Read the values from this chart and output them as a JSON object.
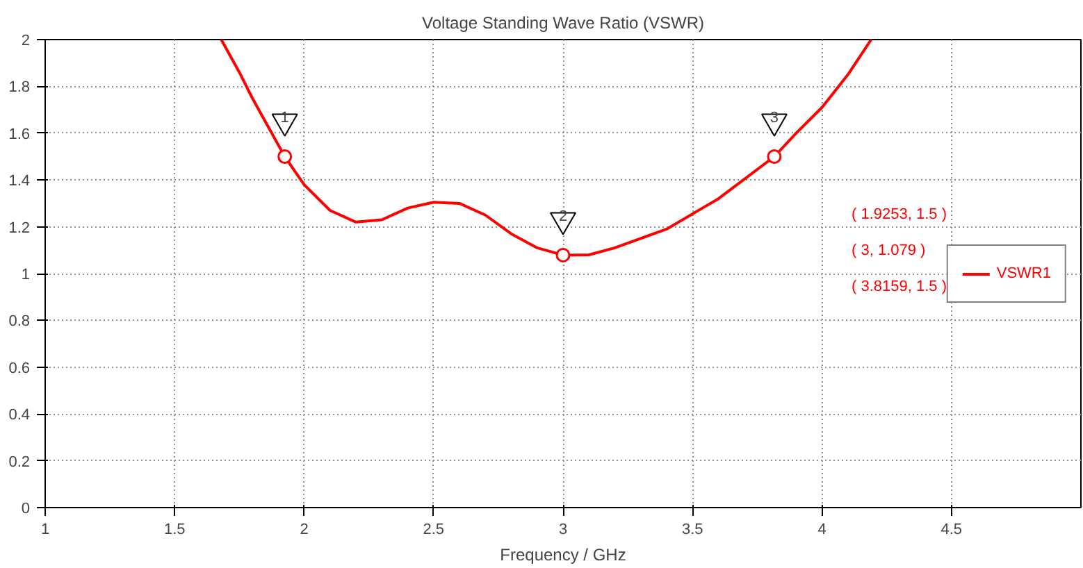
{
  "chart_data": {
    "type": "line",
    "title": "Voltage Standing Wave Ratio (VSWR)",
    "xlabel": "Frequency / GHz",
    "xlim": [
      1,
      5
    ],
    "xticks": [
      1,
      1.5,
      2,
      2.5,
      3,
      3.5,
      4,
      4.5
    ],
    "ylim": [
      0,
      2
    ],
    "yticks": [
      0,
      0.2,
      0.4,
      0.6,
      0.8,
      1,
      1.2,
      1.4,
      1.6,
      1.8,
      2
    ],
    "grid": true,
    "legend": "right",
    "series": [
      {
        "name": "VSWR1",
        "color": "#ff0000",
        "x": [
          1.68,
          1.75,
          1.8,
          1.85,
          1.9253,
          2.0,
          2.1,
          2.2,
          2.3,
          2.4,
          2.5,
          2.6,
          2.7,
          2.8,
          2.9,
          3.0,
          3.1,
          3.2,
          3.4,
          3.6,
          3.8159,
          3.9,
          4.0,
          4.1,
          4.19
        ],
        "values": [
          2.0,
          1.86,
          1.75,
          1.65,
          1.5,
          1.38,
          1.27,
          1.22,
          1.23,
          1.28,
          1.305,
          1.3,
          1.25,
          1.17,
          1.11,
          1.079,
          1.08,
          1.11,
          1.19,
          1.32,
          1.5,
          1.6,
          1.71,
          1.85,
          2.0
        ]
      },
      {
        "type": "scatter",
        "marker": "circle",
        "color": "#ff0000",
        "x": [
          1.9253,
          3,
          3.8159
        ],
        "values": [
          1.5,
          1.079,
          1.5
        ]
      }
    ],
    "annotations": [
      {
        "text": "1",
        "x": 1.9253,
        "y": 1.5
      },
      {
        "text": "2",
        "x": 3,
        "y": 1.079
      },
      {
        "text": "3",
        "x": 3.8159,
        "y": 1.5
      },
      "( 1.9253, 1.5 )",
      "( 3, 1.079 )",
      "( 3.8159, 1.5 )"
    ]
  }
}
